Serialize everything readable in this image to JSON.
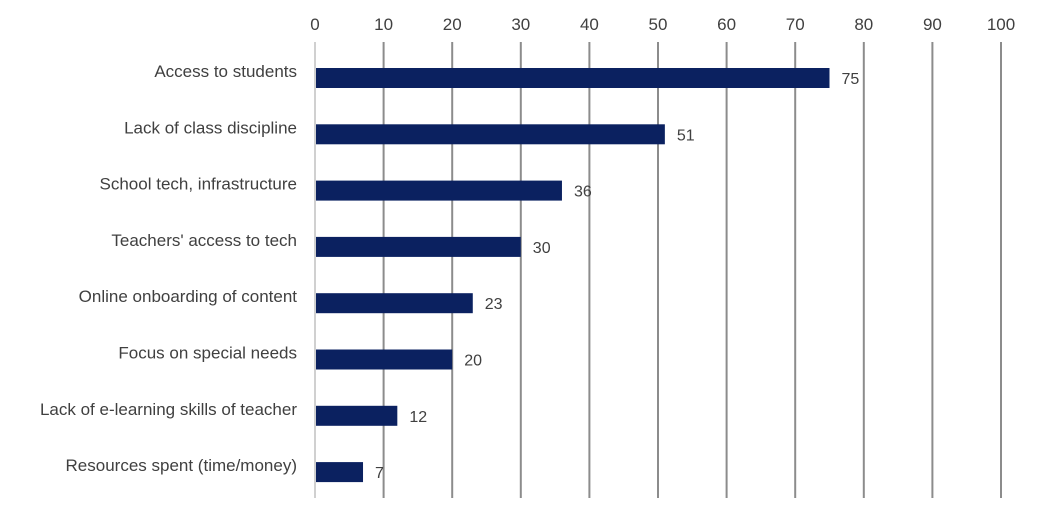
{
  "chart_data": {
    "type": "bar",
    "orientation": "horizontal",
    "title": "",
    "xlabel": "",
    "ylabel": "",
    "xlim": [
      0,
      100
    ],
    "x_ticks": [
      0,
      10,
      20,
      30,
      40,
      50,
      60,
      70,
      80,
      90,
      100
    ],
    "x_axis_position": "top",
    "grid": true,
    "legend": "none",
    "bar_color": "#0b2160",
    "categories": [
      "Access to students",
      "Lack of class discipline",
      "School tech, infrastructure",
      "Teachers' access to tech",
      "Online onboarding of content",
      "Focus on special needs",
      "Lack of e-learning skills of teacher",
      "Resources spent (time/money)"
    ],
    "values": [
      75,
      51,
      36,
      30,
      23,
      20,
      12,
      7
    ]
  }
}
